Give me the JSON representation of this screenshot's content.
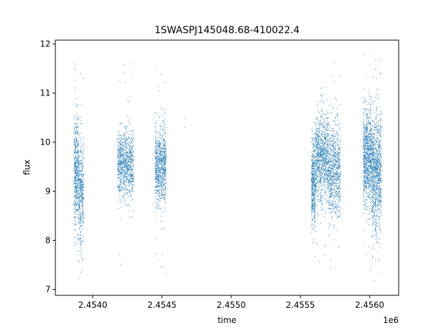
{
  "chart_data": {
    "type": "scatter",
    "title": "1SWASPJ145048.68-410022.4",
    "xlabel": "time",
    "ylabel": "flux",
    "x_offset_label": "1e6",
    "xlim": [
      2453730,
      2456210
    ],
    "ylim": [
      6.88,
      12.08
    ],
    "x_ticks": [
      2454000,
      2454500,
      2455000,
      2455500,
      2456000
    ],
    "x_tick_labels": [
      "2.4540",
      "2.4545",
      "2.4550",
      "2.4555",
      "2.4560"
    ],
    "y_ticks": [
      7,
      8,
      9,
      10,
      11,
      12
    ],
    "y_tick_labels": [
      "7",
      "8",
      "9",
      "10",
      "11",
      "12"
    ],
    "grid": false,
    "marker_color": "#1f77b4",
    "series": [
      {
        "clusters": [
          {
            "time_range": [
              2453865,
              2453895
            ],
            "flux_mean": 9.4,
            "flux_std": 0.55,
            "flux_range": [
              7.15,
              11.7
            ],
            "n": 450
          },
          {
            "time_range": [
              2453895,
              2453935
            ],
            "flux_mean": 9.0,
            "flux_std": 0.55,
            "flux_range": [
              7.15,
              11.7
            ],
            "n": 450
          },
          {
            "time_range": [
              2454180,
              2454295
            ],
            "flux_mean": 9.55,
            "flux_std": 0.35,
            "flux_range": [
              7.2,
              11.7
            ],
            "n": 900
          },
          {
            "time_range": [
              2454450,
              2454530
            ],
            "flux_mean": 9.5,
            "flux_std": 0.4,
            "flux_range": [
              7.15,
              11.5
            ],
            "n": 800
          },
          {
            "time_range": [
              2455580,
              2455610
            ],
            "flux_mean": 9.2,
            "flux_std": 0.45,
            "flux_range": [
              7.6,
              11.5
            ],
            "n": 450
          },
          {
            "time_range": [
              2455610,
              2455700
            ],
            "flux_mean": 9.7,
            "flux_std": 0.45,
            "flux_range": [
              7.5,
              11.2
            ],
            "n": 900
          },
          {
            "time_range": [
              2455700,
              2455790
            ],
            "flux_mean": 9.4,
            "flux_std": 0.5,
            "flux_range": [
              7.1,
              11.75
            ],
            "n": 800
          },
          {
            "time_range": [
              2455955,
              2456015
            ],
            "flux_mean": 9.7,
            "flux_std": 0.5,
            "flux_range": [
              7.3,
              11.8
            ],
            "n": 850
          },
          {
            "time_range": [
              2456015,
              2456085
            ],
            "flux_mean": 9.4,
            "flux_std": 0.6,
            "flux_range": [
              7.1,
              11.8
            ],
            "n": 1000
          }
        ],
        "points": [
          {
            "x": 2454665,
            "y": 10.48
          },
          {
            "x": 2454665,
            "y": 10.3
          }
        ]
      }
    ]
  }
}
